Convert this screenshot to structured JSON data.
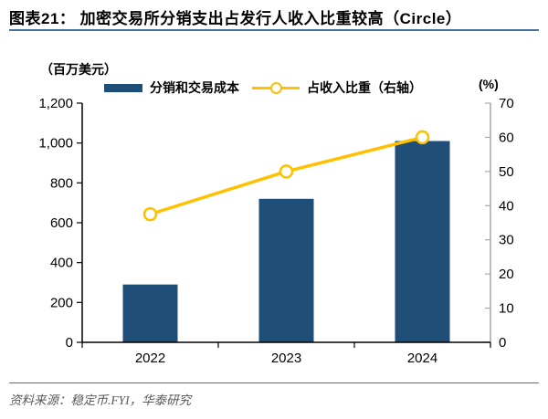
{
  "figure": {
    "id_label": "图表21",
    "title": "图表21： 加密交易所分销支出占发行人收入比重较高（Circle）",
    "source": "资料来源：稳定币.FYI，华泰研究"
  },
  "colors": {
    "bar": "#1F4E79",
    "line": "#FFC000",
    "marker_fill": "#FFFFFF",
    "axis_left": "#000000",
    "axis_right": "#A6A6A6",
    "rule": "#41719C",
    "source_text": "#595959"
  },
  "chart_data": {
    "type": "bar+line",
    "title": "加密交易所分销支出占发行人收入比重较高（Circle）",
    "categories": [
      "2022",
      "2023",
      "2024"
    ],
    "series": [
      {
        "name": "分销和交易成本",
        "type": "bar",
        "axis": "left",
        "color": "#1F4E79",
        "values": [
          290,
          720,
          1010
        ]
      },
      {
        "name": "占收入比重（右轴）",
        "type": "line",
        "axis": "right",
        "color": "#FFC000",
        "marker": "open-circle",
        "values": [
          37.5,
          50,
          60
        ]
      }
    ],
    "left_axis": {
      "label": "（百万美元）",
      "min": 0,
      "max": 1200,
      "step": 200,
      "tick_labels": [
        "0",
        "200",
        "400",
        "600",
        "800",
        "1,000",
        "1,200"
      ]
    },
    "right_axis": {
      "label": "(%)",
      "min": 0,
      "max": 70,
      "step": 10,
      "tick_labels": [
        "0",
        "10",
        "20",
        "30",
        "40",
        "50",
        "60",
        "70"
      ]
    },
    "legend_position": "top",
    "grid": false
  }
}
